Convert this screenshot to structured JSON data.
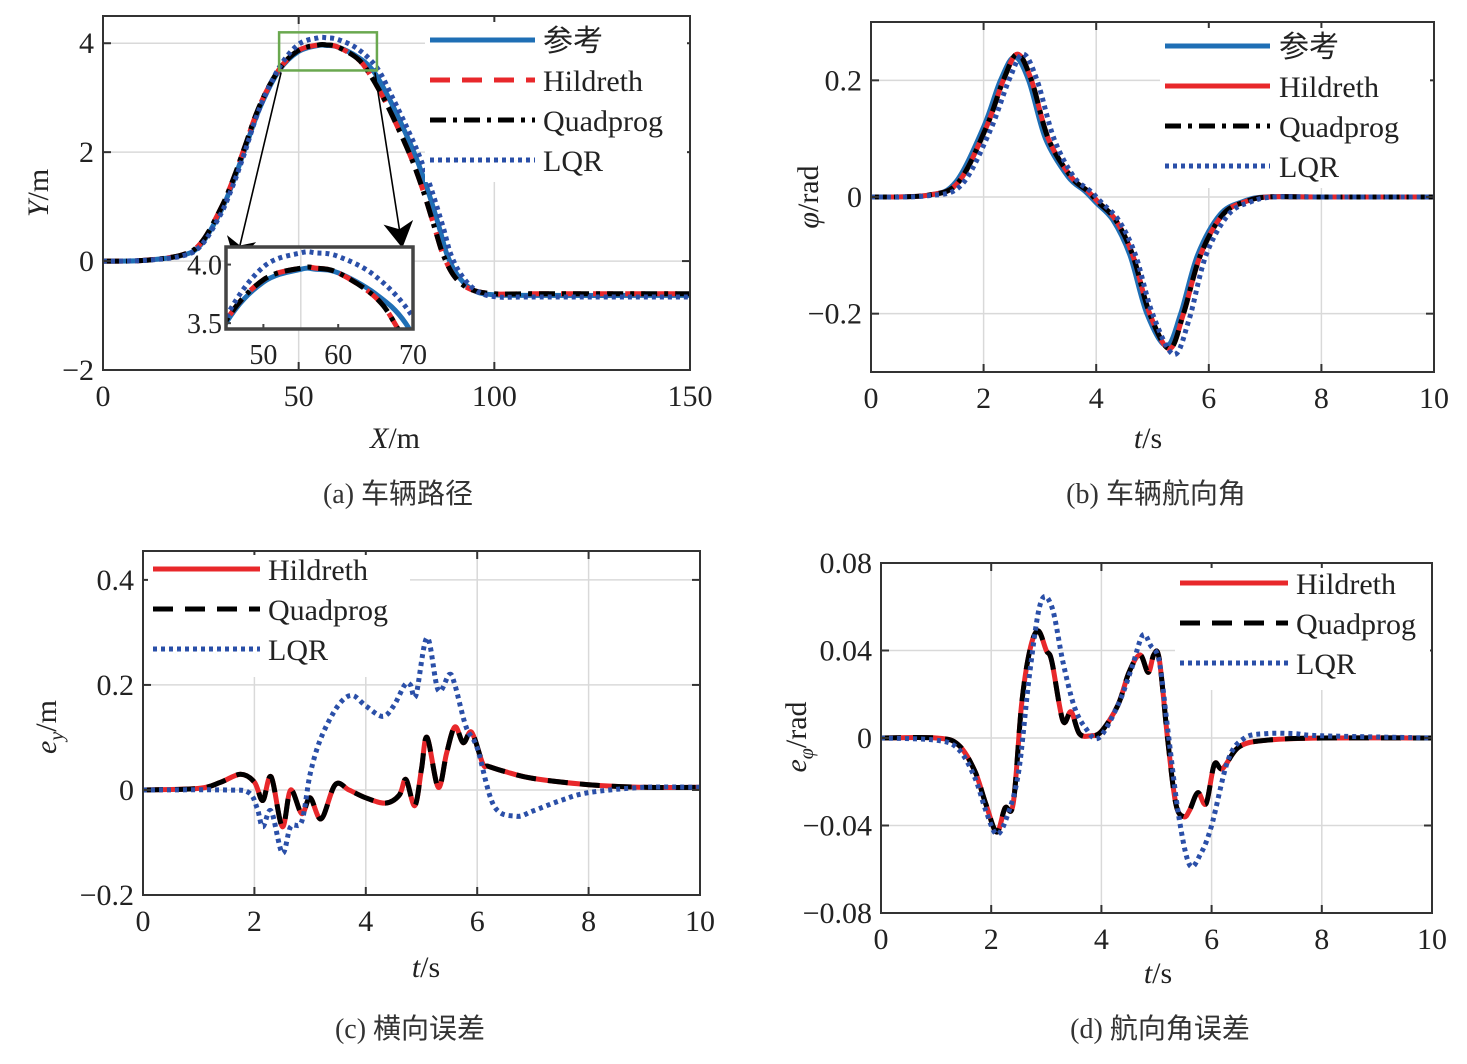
{
  "chart_data": [
    {
      "id": "a",
      "type": "line",
      "caption": "(a) 车辆路径",
      "xlabel_var": "X",
      "xlabel_unit": "/m",
      "ylabel_var": "Y",
      "ylabel_unit": "/m",
      "xlim": [
        0,
        150
      ],
      "ylim": [
        -2,
        4.5
      ],
      "xticks": [
        0,
        50,
        100,
        150
      ],
      "yticks": [
        -2,
        0,
        2,
        4
      ],
      "xtick_labels": [
        "0",
        "50",
        "100",
        "150"
      ],
      "ytick_labels": [
        "−2",
        "0",
        "2",
        "4"
      ],
      "grid": true,
      "legend_position": "top-right",
      "series": [
        {
          "name": "参考",
          "color": "#1f6fb5",
          "style": "solid",
          "x": [
            0,
            10,
            20,
            25,
            30,
            33,
            36,
            40,
            45,
            50,
            55,
            57,
            60,
            65,
            69,
            73,
            77,
            80,
            83,
            86,
            88,
            91,
            95,
            100,
            110,
            150
          ],
          "y": [
            0,
            0.01,
            0.1,
            0.3,
            0.9,
            1.4,
            2.0,
            2.8,
            3.5,
            3.85,
            3.96,
            3.96,
            3.93,
            3.75,
            3.5,
            3.0,
            2.4,
            1.9,
            1.3,
            0.6,
            0.1,
            -0.3,
            -0.55,
            -0.62,
            -0.63,
            -0.63
          ]
        },
        {
          "name": "Hildreth",
          "color": "#e8282b",
          "style": "dashed",
          "x": [
            0,
            10,
            20,
            25,
            30,
            33,
            36,
            40,
            45,
            50,
            55,
            57,
            60,
            65,
            68,
            72,
            76,
            79,
            82,
            85,
            87,
            90,
            94,
            100,
            110,
            150
          ],
          "y": [
            0,
            0.01,
            0.11,
            0.33,
            0.95,
            1.45,
            2.05,
            2.85,
            3.52,
            3.87,
            3.97,
            3.97,
            3.93,
            3.72,
            3.45,
            2.95,
            2.35,
            1.85,
            1.25,
            0.55,
            0.1,
            -0.3,
            -0.52,
            -0.6,
            -0.6,
            -0.6
          ]
        },
        {
          "name": "Quadprog",
          "color": "#000000",
          "style": "dashdot",
          "x": [
            0,
            10,
            20,
            25,
            30,
            33,
            36,
            40,
            45,
            50,
            55,
            57,
            60,
            65,
            68,
            72,
            76,
            79,
            82,
            85,
            87,
            90,
            94,
            100,
            110,
            150
          ],
          "y": [
            0,
            0.01,
            0.11,
            0.33,
            0.95,
            1.45,
            2.05,
            2.85,
            3.52,
            3.87,
            3.97,
            3.97,
            3.93,
            3.72,
            3.45,
            2.95,
            2.35,
            1.85,
            1.25,
            0.55,
            0.1,
            -0.3,
            -0.52,
            -0.6,
            -0.6,
            -0.6
          ]
        },
        {
          "name": "LQR",
          "color": "#2a4fa8",
          "style": "dotted",
          "x": [
            0,
            10,
            20,
            25,
            30,
            33,
            36,
            40,
            45,
            50,
            55,
            57,
            60,
            65,
            70,
            74,
            78,
            81,
            84,
            87,
            89,
            92,
            96,
            101,
            110,
            150
          ],
          "y": [
            0,
            0.01,
            0.09,
            0.28,
            0.85,
            1.35,
            1.95,
            2.8,
            3.55,
            3.98,
            4.1,
            4.1,
            4.07,
            3.9,
            3.55,
            3.0,
            2.4,
            1.9,
            1.3,
            0.6,
            0.1,
            -0.3,
            -0.57,
            -0.66,
            -0.66,
            -0.66
          ]
        }
      ],
      "inset": {
        "xlim": [
          45,
          70
        ],
        "ylim": [
          3.45,
          4.15
        ],
        "xticks": [
          50,
          60,
          70
        ],
        "yticks": [
          3.5,
          4.0
        ],
        "xtick_labels": [
          "50",
          "60",
          "70"
        ],
        "ytick_labels": [
          "3.5",
          "4.0"
        ],
        "zoom_box_x": [
          45,
          70
        ],
        "zoom_box_y": [
          3.5,
          4.2
        ]
      }
    },
    {
      "id": "b",
      "type": "line",
      "caption": "(b) 车辆航向角",
      "xlabel_var": "t",
      "xlabel_unit": "/s",
      "ylabel_var": "φ",
      "ylabel_unit": "/rad",
      "xlim": [
        0,
        10
      ],
      "ylim": [
        -0.3,
        0.3
      ],
      "xticks": [
        0,
        2,
        4,
        6,
        8,
        10
      ],
      "yticks": [
        -0.2,
        0,
        0.2
      ],
      "xtick_labels": [
        "0",
        "2",
        "4",
        "6",
        "8",
        "10"
      ],
      "ytick_labels": [
        "−0.2",
        "0",
        "0.2"
      ],
      "grid": true,
      "legend_position": "top-right",
      "series": [
        {
          "name": "参考",
          "color": "#1f6fb5",
          "style": "solid",
          "x": [
            0,
            1,
            1.5,
            2,
            2.3,
            2.55,
            2.8,
            3.1,
            3.5,
            3.8,
            4.0,
            4.3,
            4.6,
            4.9,
            5.25,
            5.5,
            5.8,
            6.2,
            6.6,
            7,
            8,
            10
          ],
          "y": [
            0,
            0.003,
            0.025,
            0.12,
            0.2,
            0.24,
            0.2,
            0.1,
            0.035,
            0.01,
            -0.01,
            -0.04,
            -0.1,
            -0.2,
            -0.255,
            -0.2,
            -0.1,
            -0.03,
            -0.008,
            0,
            0,
            0
          ]
        },
        {
          "name": "Hildreth",
          "color": "#e8282b",
          "style": "solid",
          "x": [
            0,
            1,
            1.55,
            2.05,
            2.35,
            2.6,
            2.85,
            3.15,
            3.55,
            3.85,
            4.05,
            4.35,
            4.65,
            4.95,
            5.3,
            5.55,
            5.85,
            6.25,
            6.65,
            7.05,
            8,
            10
          ],
          "y": [
            0,
            0.003,
            0.025,
            0.12,
            0.2,
            0.245,
            0.2,
            0.1,
            0.035,
            0.01,
            -0.01,
            -0.04,
            -0.1,
            -0.2,
            -0.26,
            -0.2,
            -0.1,
            -0.03,
            -0.008,
            0,
            0,
            0
          ]
        },
        {
          "name": "Quadprog",
          "color": "#000000",
          "style": "dashdot",
          "x": [
            0,
            1,
            1.55,
            2.05,
            2.35,
            2.6,
            2.85,
            3.15,
            3.55,
            3.85,
            4.05,
            4.35,
            4.65,
            4.95,
            5.3,
            5.55,
            5.85,
            6.25,
            6.65,
            7.05,
            8,
            10
          ],
          "y": [
            0,
            0.003,
            0.025,
            0.12,
            0.2,
            0.245,
            0.2,
            0.1,
            0.035,
            0.01,
            -0.01,
            -0.04,
            -0.1,
            -0.2,
            -0.26,
            -0.2,
            -0.1,
            -0.03,
            -0.008,
            0,
            0,
            0
          ]
        },
        {
          "name": "LQR",
          "color": "#2a4fa8",
          "style": "dotted",
          "x": [
            0,
            1,
            1.6,
            2.1,
            2.45,
            2.7,
            2.95,
            3.25,
            3.6,
            3.9,
            4.1,
            4.4,
            4.7,
            5.0,
            5.38,
            5.65,
            5.95,
            6.35,
            6.75,
            7.15,
            8,
            10
          ],
          "y": [
            0,
            0.002,
            0.02,
            0.11,
            0.2,
            0.245,
            0.2,
            0.1,
            0.035,
            0.01,
            -0.01,
            -0.04,
            -0.1,
            -0.2,
            -0.27,
            -0.21,
            -0.1,
            -0.03,
            -0.008,
            0,
            0,
            0
          ]
        }
      ]
    },
    {
      "id": "c",
      "type": "line",
      "caption": "(c) 横向误差",
      "xlabel_var": "t",
      "xlabel_unit": "/s",
      "ylabel_var": "e",
      "ylabel_sub": "y",
      "ylabel_unit": "/m",
      "xlim": [
        0,
        10
      ],
      "ylim": [
        -0.2,
        0.455
      ],
      "xticks": [
        0,
        2,
        4,
        6,
        8,
        10
      ],
      "yticks": [
        -0.2,
        0,
        0.2,
        0.4
      ],
      "xtick_labels": [
        "0",
        "2",
        "4",
        "6",
        "8",
        "10"
      ],
      "ytick_labels": [
        "−0.2",
        "0",
        "0.2",
        "0.4"
      ],
      "grid": true,
      "legend_position": "top-left",
      "series": [
        {
          "name": "Hildreth",
          "color": "#e8282b",
          "style": "solid",
          "x": [
            0,
            1,
            1.4,
            1.75,
            2.0,
            2.15,
            2.3,
            2.5,
            2.65,
            2.85,
            3.0,
            3.2,
            3.45,
            3.7,
            4.0,
            4.35,
            4.6,
            4.72,
            4.88,
            5.0,
            5.1,
            5.3,
            5.45,
            5.6,
            5.75,
            5.9,
            6.1,
            6.2,
            6.5,
            7,
            8,
            9,
            10
          ],
          "y": [
            0,
            0.003,
            0.015,
            0.03,
            0.015,
            -0.02,
            0.025,
            -0.07,
            0,
            -0.045,
            -0.015,
            -0.055,
            0.01,
            0,
            -0.015,
            -0.025,
            -0.01,
            0.02,
            -0.03,
            0.04,
            0.1,
            0.005,
            0.07,
            0.12,
            0.09,
            0.11,
            0.05,
            0.045,
            0.035,
            0.022,
            0.01,
            0.005,
            0.005
          ]
        },
        {
          "name": "Quadprog",
          "color": "#000000",
          "style": "dashed",
          "x": [
            0,
            1,
            1.4,
            1.75,
            2.0,
            2.15,
            2.3,
            2.5,
            2.65,
            2.85,
            3.0,
            3.2,
            3.45,
            3.7,
            4.0,
            4.35,
            4.6,
            4.72,
            4.88,
            5.0,
            5.1,
            5.3,
            5.45,
            5.6,
            5.75,
            5.9,
            6.1,
            6.2,
            6.5,
            7,
            8,
            9,
            10
          ],
          "y": [
            0,
            0.003,
            0.015,
            0.03,
            0.015,
            -0.02,
            0.025,
            -0.07,
            0,
            -0.045,
            -0.015,
            -0.055,
            0.01,
            0,
            -0.015,
            -0.025,
            -0.01,
            0.02,
            -0.03,
            0.04,
            0.1,
            0.005,
            0.07,
            0.12,
            0.09,
            0.11,
            0.05,
            0.045,
            0.035,
            0.022,
            0.01,
            0.005,
            0.005
          ]
        },
        {
          "name": "LQR",
          "color": "#2a4fa8",
          "style": "dotted",
          "x": [
            0,
            1.5,
            1.9,
            2.05,
            2.15,
            2.3,
            2.5,
            2.65,
            2.85,
            3.0,
            3.2,
            3.5,
            3.75,
            4.0,
            4.3,
            4.5,
            4.7,
            4.8,
            4.9,
            5.1,
            5.3,
            5.5,
            5.6,
            5.8,
            6.0,
            6.3,
            6.7,
            7,
            7.5,
            8,
            9,
            10
          ],
          "y": [
            0,
            0,
            -0.005,
            -0.035,
            -0.07,
            -0.04,
            -0.12,
            -0.07,
            -0.06,
            0.03,
            0.1,
            0.16,
            0.18,
            0.16,
            0.14,
            0.16,
            0.2,
            0.2,
            0.18,
            0.29,
            0.19,
            0.22,
            0.2,
            0.12,
            0.08,
            -0.03,
            -0.05,
            -0.04,
            -0.02,
            -0.005,
            0.005,
            0.005
          ]
        }
      ]
    },
    {
      "id": "d",
      "type": "line",
      "caption": "(d) 航向角误差",
      "xlabel_var": "t",
      "xlabel_unit": "/s",
      "ylabel_var": "e",
      "ylabel_sub": "φ",
      "ylabel_unit": "/rad",
      "xlim": [
        0,
        10
      ],
      "ylim": [
        -0.08,
        0.08
      ],
      "xticks": [
        0,
        2,
        4,
        6,
        8,
        10
      ],
      "yticks": [
        -0.08,
        -0.04,
        0,
        0.04,
        0.08
      ],
      "xtick_labels": [
        "0",
        "2",
        "4",
        "6",
        "8",
        "10"
      ],
      "ytick_labels": [
        "−0.08",
        "−0.04",
        "0",
        "0.04",
        "0.08"
      ],
      "grid": true,
      "legend_position": "top-right",
      "series": [
        {
          "name": "Hildreth",
          "color": "#e8282b",
          "style": "solid",
          "x": [
            0,
            1,
            1.4,
            1.7,
            1.9,
            2.1,
            2.25,
            2.4,
            2.55,
            2.7,
            2.85,
            3.0,
            3.1,
            3.3,
            3.45,
            3.6,
            3.8,
            4.0,
            4.3,
            4.5,
            4.7,
            4.85,
            4.95,
            5.05,
            5.2,
            5.35,
            5.5,
            5.6,
            5.75,
            5.9,
            6.05,
            6.2,
            6.5,
            7,
            8,
            10
          ],
          "y": [
            0,
            0,
            -0.003,
            -0.015,
            -0.03,
            -0.043,
            -0.032,
            -0.03,
            0.015,
            0.04,
            0.049,
            0.04,
            0.035,
            0.008,
            0.012,
            0.002,
            0.001,
            0.003,
            0.015,
            0.03,
            0.038,
            0.03,
            0.038,
            0.036,
            0.0,
            -0.03,
            -0.036,
            -0.033,
            -0.025,
            -0.03,
            -0.012,
            -0.014,
            -0.004,
            -0.001,
            0,
            0
          ]
        },
        {
          "name": "Quadprog",
          "color": "#000000",
          "style": "dashed",
          "x": [
            0,
            1,
            1.4,
            1.7,
            1.9,
            2.1,
            2.25,
            2.4,
            2.55,
            2.7,
            2.85,
            3.0,
            3.1,
            3.3,
            3.45,
            3.6,
            3.8,
            4.0,
            4.3,
            4.5,
            4.7,
            4.85,
            4.95,
            5.05,
            5.2,
            5.35,
            5.5,
            5.6,
            5.75,
            5.9,
            6.05,
            6.2,
            6.5,
            7,
            8,
            10
          ],
          "y": [
            0,
            0,
            -0.003,
            -0.015,
            -0.03,
            -0.043,
            -0.032,
            -0.03,
            0.015,
            0.04,
            0.049,
            0.04,
            0.035,
            0.008,
            0.012,
            0.002,
            0.001,
            0.003,
            0.015,
            0.03,
            0.038,
            0.03,
            0.038,
            0.036,
            0.0,
            -0.03,
            -0.036,
            -0.033,
            -0.025,
            -0.03,
            -0.012,
            -0.014,
            -0.004,
            -0.001,
            0,
            0
          ]
        },
        {
          "name": "LQR",
          "color": "#2a4fa8",
          "style": "dotted",
          "x": [
            0,
            1,
            1.4,
            1.7,
            1.9,
            2.1,
            2.3,
            2.5,
            2.7,
            2.9,
            3.1,
            3.3,
            3.5,
            3.7,
            3.95,
            4.3,
            4.55,
            4.75,
            4.9,
            5.05,
            5.2,
            5.4,
            5.6,
            5.8,
            6.0,
            6.3,
            6.6,
            7,
            7.5,
            8,
            10
          ],
          "y": [
            0,
            -0.001,
            -0.005,
            -0.018,
            -0.033,
            -0.044,
            -0.035,
            -0.015,
            0.03,
            0.062,
            0.06,
            0.035,
            0.015,
            0.005,
            0.0,
            0.015,
            0.032,
            0.047,
            0.042,
            0.035,
            0.005,
            -0.035,
            -0.058,
            -0.053,
            -0.04,
            -0.01,
            0.0,
            0.002,
            0.002,
            0.001,
            0
          ]
        }
      ]
    }
  ]
}
